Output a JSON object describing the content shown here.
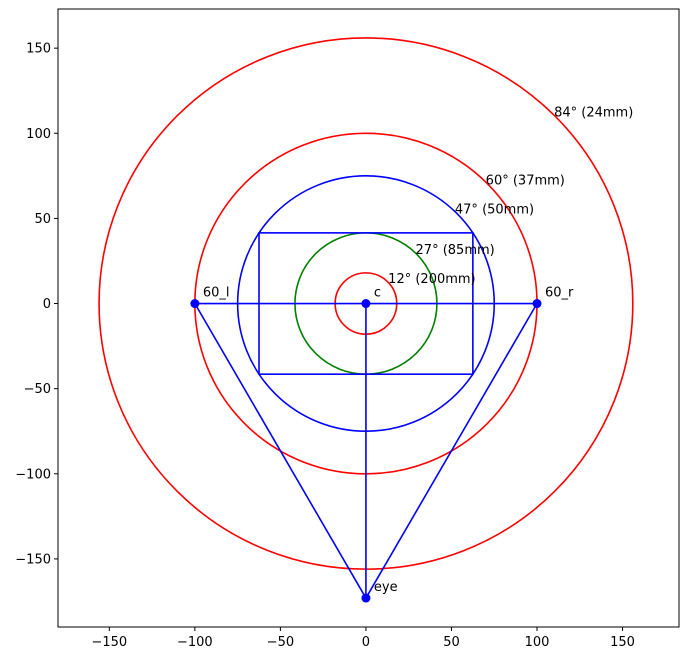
{
  "chart_data": {
    "type": "diagram",
    "title": "",
    "xlabel": "",
    "ylabel": "",
    "xlim": [
      -180,
      183
    ],
    "ylim": [
      -190,
      173
    ],
    "grid": false,
    "xticks": [
      -150,
      -100,
      -50,
      0,
      50,
      100,
      150
    ],
    "yticks": [
      -150,
      -100,
      -50,
      0,
      50,
      100,
      150
    ],
    "circles": [
      {
        "label": "12° (200mm)",
        "r": 18,
        "color": "#ff0000",
        "label_at": [
          13,
          12
        ]
      },
      {
        "label": "27° (85mm)",
        "r": 41.5,
        "color": "#008000",
        "label_at": [
          29,
          29
        ]
      },
      {
        "label": "47° (50mm)",
        "r": 75,
        "color": "#0000ff",
        "label_at": [
          52,
          53
        ]
      },
      {
        "label": "60° (37mm)",
        "r": 100,
        "color": "#ff0000",
        "label_at": [
          70,
          70
        ]
      },
      {
        "label": "84° (24mm)",
        "r": 156,
        "color": "#ff0000",
        "label_at": [
          110,
          110
        ]
      }
    ],
    "rectangle": {
      "x": [
        -62.5,
        62.5
      ],
      "y": [
        -41.5,
        41.5
      ],
      "color": "#0000ff"
    },
    "points": [
      {
        "label": "c",
        "x": 0,
        "y": 0
      },
      {
        "label": "60_l",
        "x": -100,
        "y": 0
      },
      {
        "label": "60_r",
        "x": 100,
        "y": 0
      },
      {
        "label": "eye",
        "x": 0,
        "y": -173
      }
    ],
    "lines": [
      {
        "from": "60_l",
        "to": "60_r"
      },
      {
        "from": "c",
        "to": "eye"
      },
      {
        "from": "60_l",
        "to": "eye"
      },
      {
        "from": "60_r",
        "to": "eye"
      }
    ],
    "line_color": "#0000ff",
    "point_color": "#0000ff"
  }
}
